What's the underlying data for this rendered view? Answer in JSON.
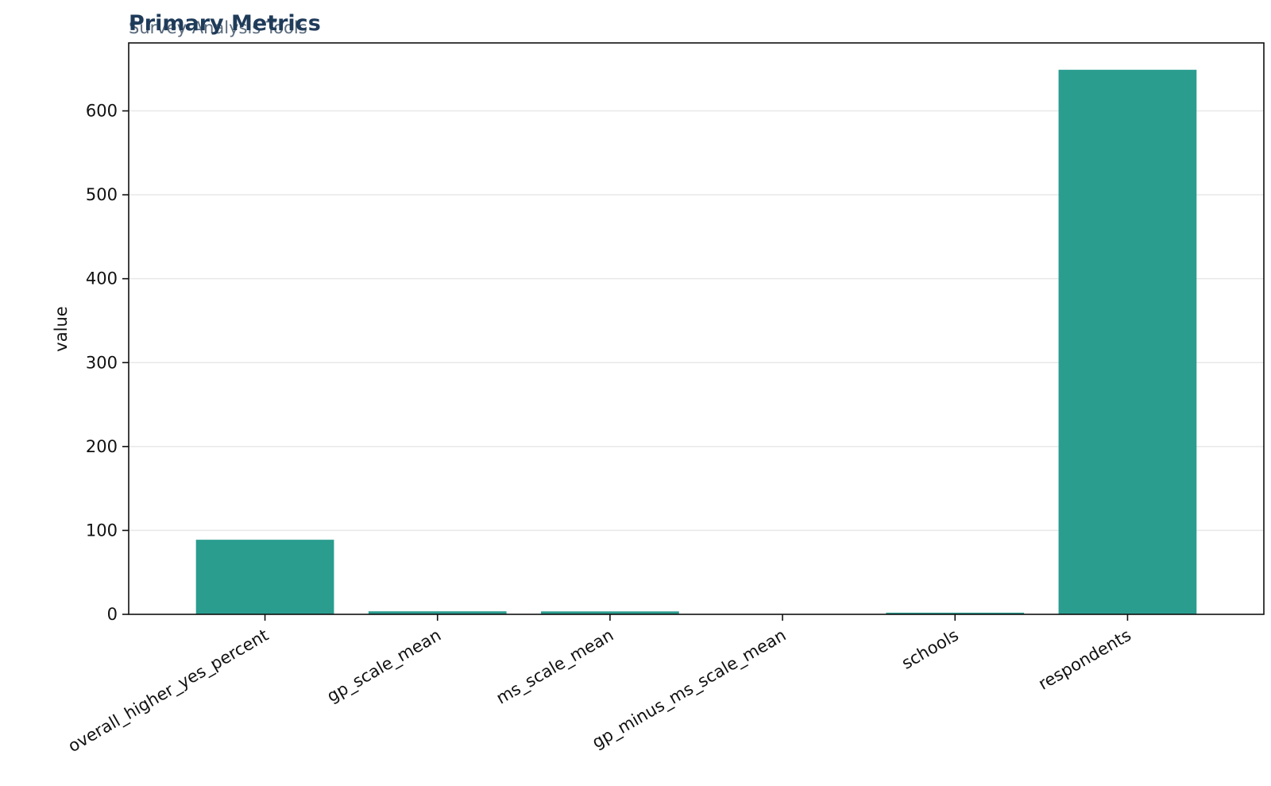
{
  "chart_data": {
    "type": "bar",
    "title": "Primary Metrics",
    "subtitle": "Survey Analysis Tools",
    "xlabel": "",
    "ylabel": "value",
    "categories": [
      "overall_higher_yes_percent",
      "gp_scale_mean",
      "ms_scale_mean",
      "gp_minus_ms_scale_mean",
      "schools",
      "respondents"
    ],
    "values": [
      88.9,
      3.6,
      3.5,
      0.1,
      2,
      649
    ],
    "ylim": [
      0,
      681
    ],
    "yticks": [
      0,
      100,
      200,
      300,
      400,
      500,
      600
    ],
    "grid": true,
    "legend": "none",
    "bar_color": "#2a9d8f",
    "title_color": "#1f3b5a"
  }
}
